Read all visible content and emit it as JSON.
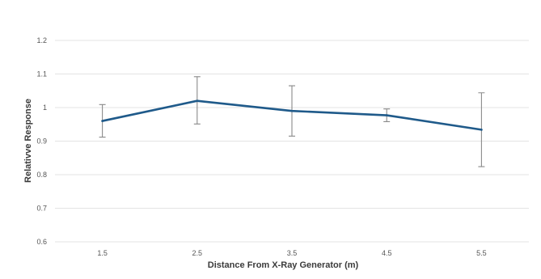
{
  "chart_data": {
    "type": "line",
    "title": "",
    "xlabel": "Distance From X-Ray Generator (m)",
    "ylabel": "Relativve Response",
    "categories": [
      "1.5",
      "2.5",
      "3.5",
      "4.5",
      "5.5"
    ],
    "ylim": [
      0.6,
      1.2
    ],
    "yticks": [
      "0.6",
      "0.7",
      "0.8",
      "0.9",
      "1",
      "1.1",
      "1.2"
    ],
    "grid": true,
    "legend": "none",
    "series": [
      {
        "values": [
          0.96,
          1.02,
          0.99,
          0.977,
          0.934
        ],
        "error_low": [
          0.912,
          0.951,
          0.915,
          0.958,
          0.824
        ],
        "error_high": [
          1.009,
          1.092,
          1.065,
          0.996,
          1.044
        ],
        "color": "#1f5a8a"
      }
    ],
    "colors": {
      "gridline": "#e3e3e3",
      "errorbar": "#8a8a8a"
    }
  }
}
